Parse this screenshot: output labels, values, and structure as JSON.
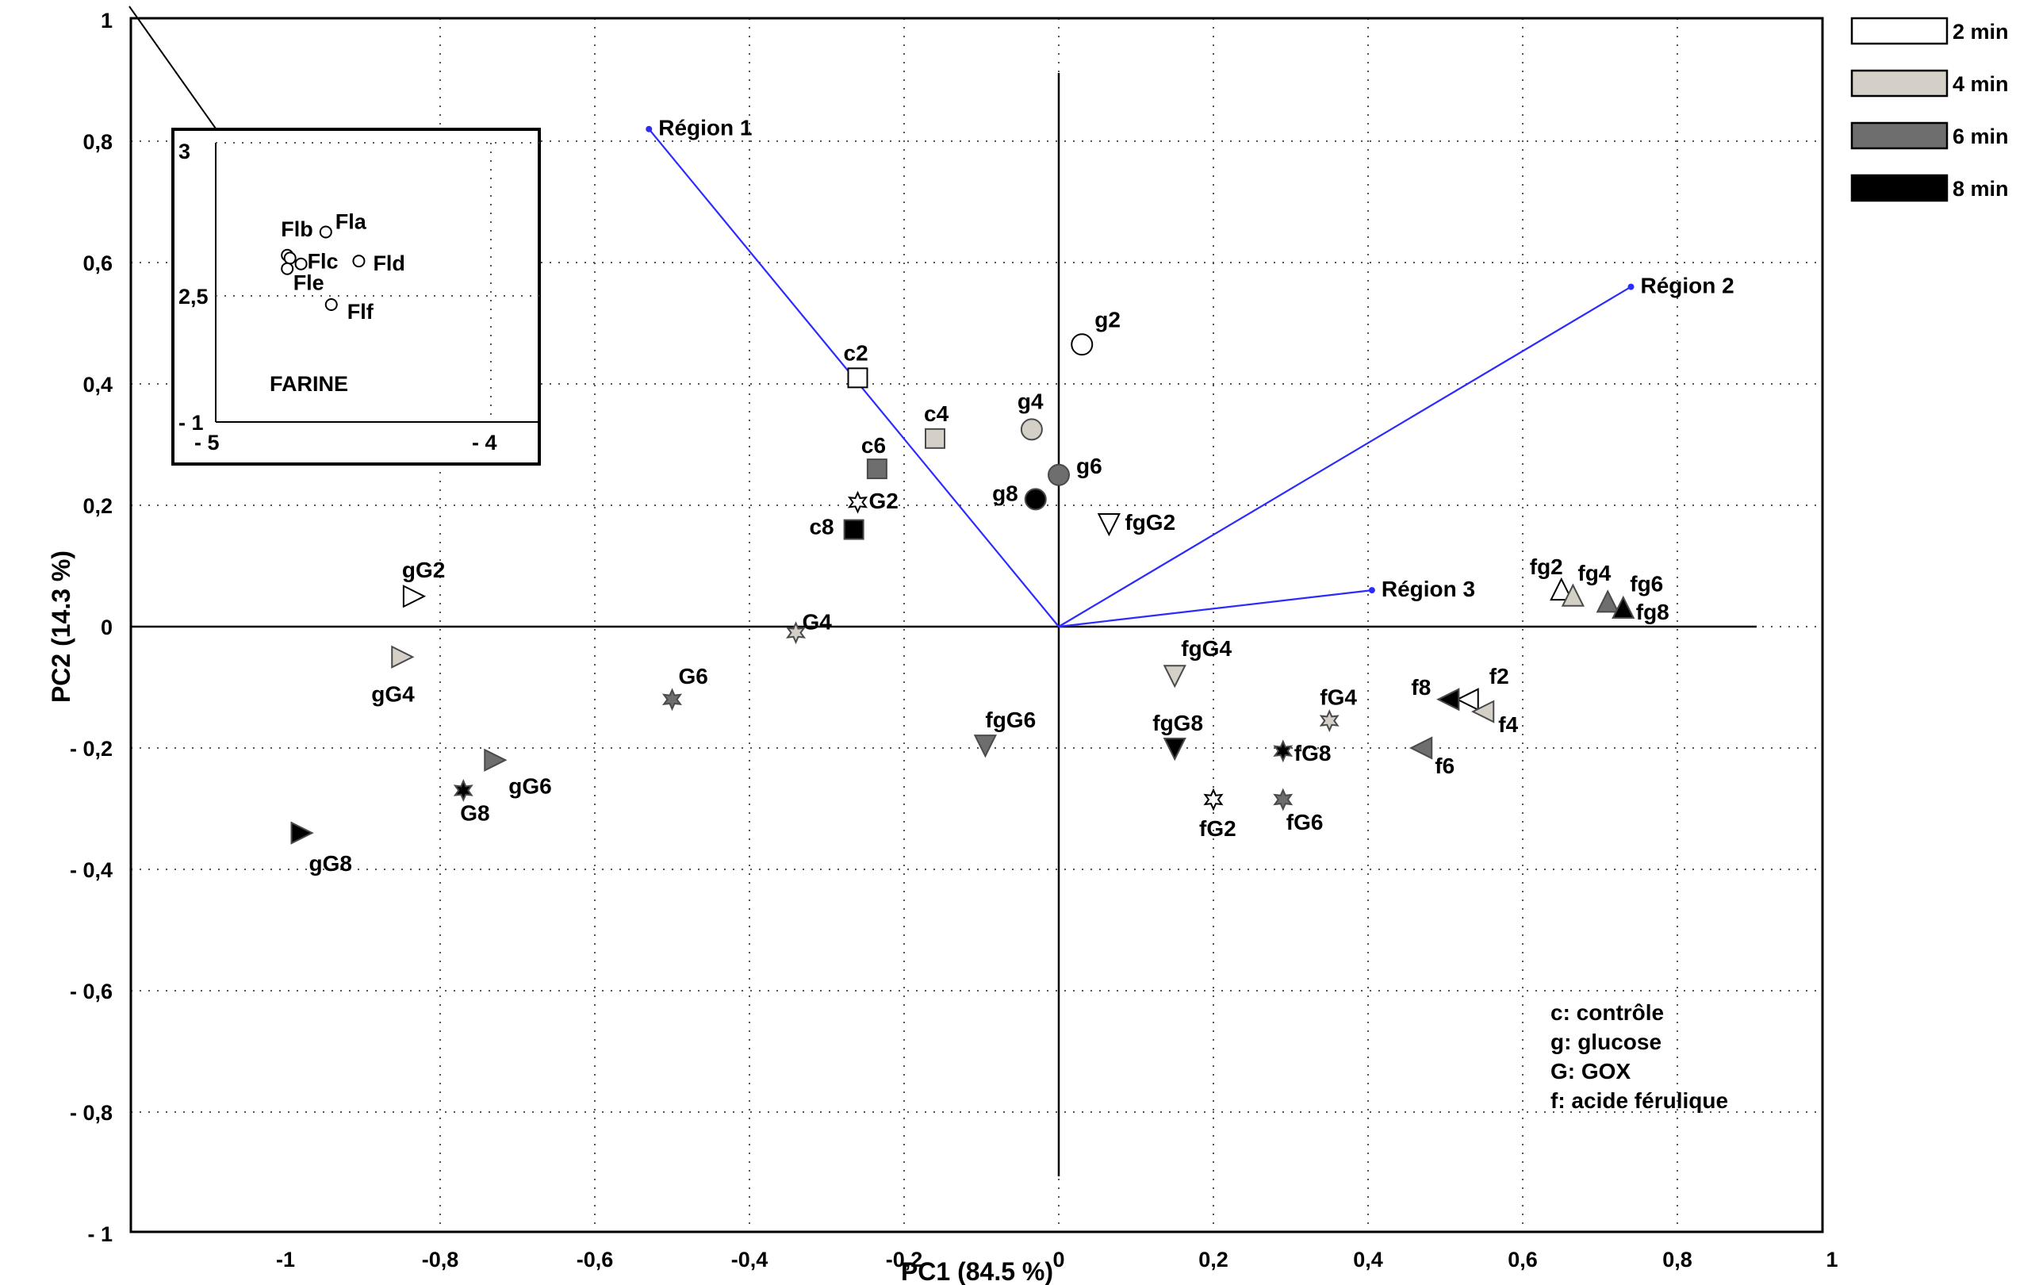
{
  "chart_data": {
    "type": "scatter",
    "xlabel": "PC1 (84.5 %)",
    "ylabel": "PC2 (14.3 %)",
    "xlim": [
      -1.2,
      1
    ],
    "ylim": [
      -1,
      1
    ],
    "grid": true,
    "x_ticks": [
      "-1",
      "-0,8",
      "-0,6",
      "-0,4",
      "-0,2",
      "0",
      "0,2",
      "0,4",
      "0,6",
      "0,8",
      "1"
    ],
    "y_ticks": [
      "1",
      "0,8",
      "0,6",
      "0,4",
      "0,2",
      "0",
      "- 0,2",
      "- 0,4",
      "- 0,6",
      "- 0,8",
      "- 1"
    ],
    "legend_position": "top-right",
    "legend": [
      {
        "label": "2 min",
        "color": "#ffffff"
      },
      {
        "label": "4 min",
        "color": "#d4d0c8"
      },
      {
        "label": "6 min",
        "color": "#6e6e6e"
      },
      {
        "label": "8 min",
        "color": "#000000"
      }
    ],
    "loadings": [
      {
        "label": "Région 1",
        "x": -0.53,
        "y": 0.82
      },
      {
        "label": "Région 2",
        "x": 0.74,
        "y": 0.56
      },
      {
        "label": "Région 3",
        "x": 0.405,
        "y": 0.06
      }
    ],
    "points": [
      {
        "label": "c2",
        "x": -0.26,
        "y": 0.41,
        "shape": "square",
        "time": "2 min"
      },
      {
        "label": "c4",
        "x": -0.16,
        "y": 0.31,
        "shape": "square",
        "time": "4 min"
      },
      {
        "label": "c6",
        "x": -0.235,
        "y": 0.26,
        "shape": "square",
        "time": "6 min"
      },
      {
        "label": "c8",
        "x": -0.265,
        "y": 0.16,
        "shape": "square",
        "time": "8 min"
      },
      {
        "label": "g2",
        "x": 0.03,
        "y": 0.465,
        "shape": "circle",
        "time": "2 min"
      },
      {
        "label": "g4",
        "x": -0.035,
        "y": 0.325,
        "shape": "circle",
        "time": "4 min"
      },
      {
        "label": "g6",
        "x": 0.0,
        "y": 0.25,
        "shape": "circle",
        "time": "6 min"
      },
      {
        "label": "g8",
        "x": -0.03,
        "y": 0.21,
        "shape": "circle",
        "time": "8 min"
      },
      {
        "label": "G2",
        "x": -0.26,
        "y": 0.205,
        "shape": "star",
        "time": "2 min"
      },
      {
        "label": "G4",
        "x": -0.34,
        "y": -0.01,
        "shape": "star",
        "time": "4 min"
      },
      {
        "label": "G6",
        "x": -0.5,
        "y": -0.12,
        "shape": "star",
        "time": "6 min"
      },
      {
        "label": "G8",
        "x": -0.77,
        "y": -0.27,
        "shape": "star",
        "time": "8 min"
      },
      {
        "label": "gG2",
        "x": -0.835,
        "y": 0.05,
        "shape": "tri-right",
        "time": "2 min"
      },
      {
        "label": "gG4",
        "x": -0.85,
        "y": -0.05,
        "shape": "tri-right",
        "time": "4 min"
      },
      {
        "label": "gG6",
        "x": -0.73,
        "y": -0.22,
        "shape": "tri-right",
        "time": "6 min"
      },
      {
        "label": "gG8",
        "x": -0.98,
        "y": -0.34,
        "shape": "tri-right",
        "time": "8 min"
      },
      {
        "label": "fgG2",
        "x": 0.065,
        "y": 0.17,
        "shape": "tri-down",
        "time": "2 min"
      },
      {
        "label": "fgG4",
        "x": 0.15,
        "y": -0.08,
        "shape": "tri-down",
        "time": "4 min"
      },
      {
        "label": "fgG6",
        "x": -0.095,
        "y": -0.195,
        "shape": "tri-down",
        "time": "6 min"
      },
      {
        "label": "fgG8",
        "x": 0.15,
        "y": -0.2,
        "shape": "tri-down",
        "time": "8 min"
      },
      {
        "label": "fG2",
        "x": 0.2,
        "y": -0.285,
        "shape": "star",
        "time": "2 min"
      },
      {
        "label": "fG4",
        "x": 0.35,
        "y": -0.155,
        "shape": "star",
        "time": "4 min"
      },
      {
        "label": "fG6",
        "x": 0.29,
        "y": -0.285,
        "shape": "star",
        "time": "6 min"
      },
      {
        "label": "fG8",
        "x": 0.29,
        "y": -0.205,
        "shape": "star",
        "time": "8 min"
      },
      {
        "label": "f2",
        "x": 0.53,
        "y": -0.12,
        "shape": "tri-left",
        "time": "2 min"
      },
      {
        "label": "f4",
        "x": 0.55,
        "y": -0.14,
        "shape": "tri-left",
        "time": "4 min"
      },
      {
        "label": "f6",
        "x": 0.47,
        "y": -0.2,
        "shape": "tri-left",
        "time": "6 min"
      },
      {
        "label": "f8",
        "x": 0.505,
        "y": -0.12,
        "shape": "tri-left",
        "time": "8 min"
      },
      {
        "label": "fg2",
        "x": 0.65,
        "y": 0.06,
        "shape": "tri-up",
        "time": "2 min"
      },
      {
        "label": "fg4",
        "x": 0.665,
        "y": 0.05,
        "shape": "tri-up",
        "time": "4 min"
      },
      {
        "label": "fg6",
        "x": 0.71,
        "y": 0.04,
        "shape": "tri-up",
        "time": "6 min"
      },
      {
        "label": "fg8",
        "x": 0.73,
        "y": 0.03,
        "shape": "tri-up",
        "time": "8 min"
      }
    ],
    "notes": [
      "c: contrôle",
      "g: glucose",
      "G: GOX",
      "f: acide férulique"
    ],
    "inset": {
      "title": "FARINE",
      "x_ticks": [
        "- 5",
        "- 4"
      ],
      "y_ticks": [
        "3",
        "2,5",
        "- 1"
      ],
      "points": [
        {
          "label": "Fla",
          "x": -4.6,
          "y": 2.72
        },
        {
          "label": "Flb",
          "x": -4.74,
          "y": 2.64
        },
        {
          "label": "Flc",
          "x": -4.69,
          "y": 2.61
        },
        {
          "label": "Fld",
          "x": -4.48,
          "y": 2.62
        },
        {
          "label": "Fle",
          "x": -4.73,
          "y": 2.63
        },
        {
          "label": "Flf",
          "x": -4.58,
          "y": 2.47
        }
      ]
    }
  }
}
